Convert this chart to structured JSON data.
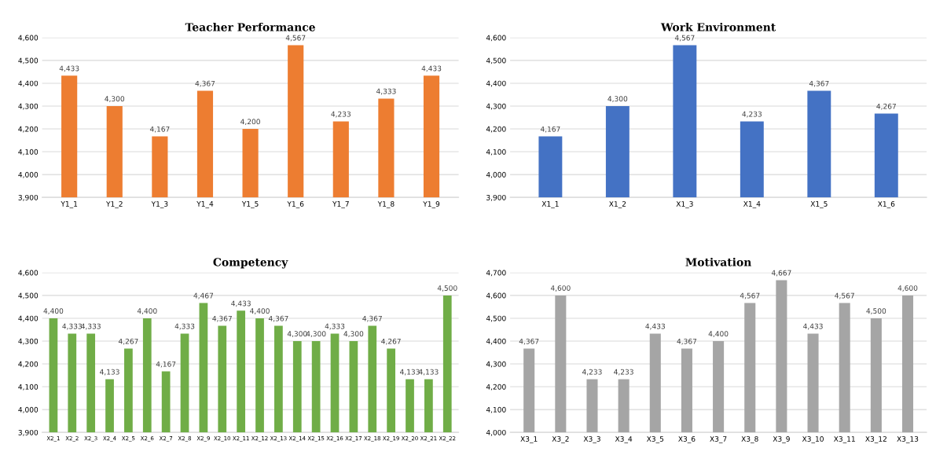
{
  "chart_data": [
    {
      "type": "bar",
      "title": "Teacher Performance",
      "categories": [
        "Y1_1",
        "Y1_2",
        "Y1_3",
        "Y1_4",
        "Y1_5",
        "Y1_6",
        "Y1_7",
        "Y1_8",
        "Y1_9"
      ],
      "values": [
        4433,
        4300,
        4167,
        4367,
        4200,
        4567,
        4233,
        4333,
        4433
      ],
      "value_labels": [
        "4,433",
        "4,300",
        "4,167",
        "4,367",
        "4,200",
        "4,567",
        "4,233",
        "4,333",
        "4,433"
      ],
      "color": "#ed7d31",
      "ylim": [
        3900,
        4600
      ],
      "yticks": [
        {
          "value": 3900,
          "label": "3,900"
        },
        {
          "value": 4000,
          "label": "4,000"
        },
        {
          "value": 4100,
          "label": "4,100"
        },
        {
          "value": 4200,
          "label": "4,200"
        },
        {
          "value": 4300,
          "label": "4,300"
        },
        {
          "value": 4400,
          "label": "4,400"
        },
        {
          "value": 4500,
          "label": "4,500"
        },
        {
          "value": 4600,
          "label": "4,600"
        }
      ],
      "grid": "y"
    },
    {
      "type": "bar",
      "title": "Work Environment",
      "categories": [
        "X1_1",
        "X1_2",
        "X1_3",
        "X1_4",
        "X1_5",
        "X1_6"
      ],
      "values": [
        4167,
        4300,
        4567,
        4233,
        4367,
        4267
      ],
      "value_labels": [
        "4,167",
        "4,300",
        "4,567",
        "4,233",
        "4,367",
        "4,267"
      ],
      "color": "#4472c4",
      "ylim": [
        3900,
        4600
      ],
      "yticks": [
        {
          "value": 3900,
          "label": "3,900"
        },
        {
          "value": 4000,
          "label": "4,000"
        },
        {
          "value": 4100,
          "label": "4,100"
        },
        {
          "value": 4200,
          "label": "4,200"
        },
        {
          "value": 4300,
          "label": "4,300"
        },
        {
          "value": 4400,
          "label": "4,400"
        },
        {
          "value": 4500,
          "label": "4,500"
        },
        {
          "value": 4600,
          "label": "4,600"
        }
      ],
      "grid": "y"
    },
    {
      "type": "bar",
      "title": "Competency",
      "categories": [
        "X2_1",
        "X2_2",
        "X2_3",
        "X2_4",
        "X2_5",
        "X2_6",
        "X2_7",
        "X2_8",
        "X2_9",
        "X2_10",
        "X2_11",
        "X2_12",
        "X2_13",
        "X2_14",
        "X2_15",
        "X2_16",
        "X2_17",
        "X2_18",
        "X2_19",
        "X2_20",
        "X2_21",
        "X2_22"
      ],
      "values": [
        4400,
        4333,
        4333,
        4133,
        4267,
        4400,
        4167,
        4333,
        4467,
        4367,
        4433,
        4400,
        4367,
        4300,
        4300,
        4333,
        4300,
        4367,
        4267,
        4133,
        4133,
        4500
      ],
      "value_labels": [
        "4,400",
        "4,333",
        "4,333",
        "4,133",
        "4,267",
        "4,400",
        "4,167",
        "4,333",
        "4,467",
        "4,367",
        "4,433",
        "4,400",
        "4,367",
        "4,300",
        "4,300",
        "4,333",
        "4,300",
        "4,367",
        "4,267",
        "4,133",
        "4,133",
        "4,500"
      ],
      "color": "#70ad47",
      "ylim": [
        3900,
        4600
      ],
      "yticks": [
        {
          "value": 3900,
          "label": "3,900"
        },
        {
          "value": 4000,
          "label": "4,000"
        },
        {
          "value": 4100,
          "label": "4,100"
        },
        {
          "value": 4200,
          "label": "4,200"
        },
        {
          "value": 4300,
          "label": "4,300"
        },
        {
          "value": 4400,
          "label": "4,400"
        },
        {
          "value": 4500,
          "label": "4,500"
        },
        {
          "value": 4600,
          "label": "4,600"
        }
      ],
      "grid": "y"
    },
    {
      "type": "bar",
      "title": "Motivation",
      "categories": [
        "X3_1",
        "X3_2",
        "X3_3",
        "X3_4",
        "X3_5",
        "X3_6",
        "X3_7",
        "X3_8",
        "X3_9",
        "X3_10",
        "X3_11",
        "X3_12",
        "X3_13"
      ],
      "values": [
        4367,
        4600,
        4233,
        4233,
        4433,
        4367,
        4400,
        4567,
        4667,
        4433,
        4567,
        4500,
        4600
      ],
      "value_labels": [
        "4,367",
        "4,600",
        "4,233",
        "4,233",
        "4,433",
        "4,367",
        "4,400",
        "4,567",
        "4,667",
        "4,433",
        "4,567",
        "4,500",
        "4,600"
      ],
      "color": "#a5a5a5",
      "ylim": [
        4000,
        4700
      ],
      "yticks": [
        {
          "value": 4000,
          "label": "4,000"
        },
        {
          "value": 4100,
          "label": "4,100"
        },
        {
          "value": 4200,
          "label": "4,200"
        },
        {
          "value": 4300,
          "label": "4,300"
        },
        {
          "value": 4400,
          "label": "4,400"
        },
        {
          "value": 4500,
          "label": "4,500"
        },
        {
          "value": 4600,
          "label": "4,600"
        },
        {
          "value": 4700,
          "label": "4,700"
        }
      ],
      "grid": "y"
    }
  ]
}
